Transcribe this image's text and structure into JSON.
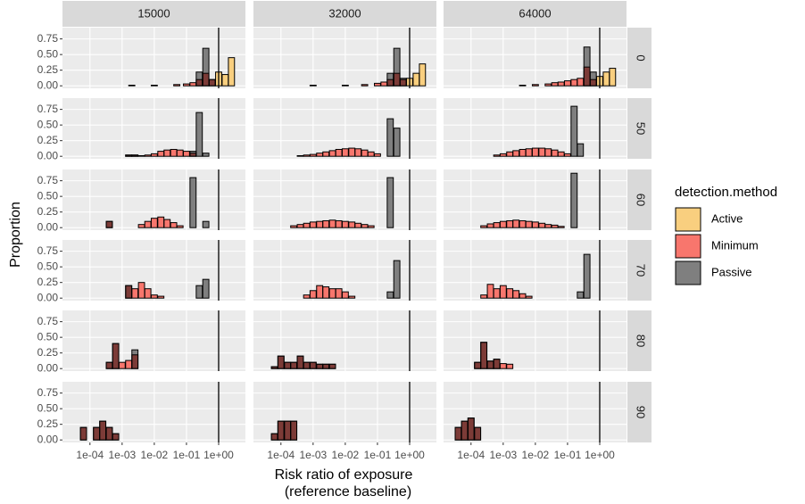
{
  "chart_data": {
    "type": "histogram",
    "xlabel": [
      "Risk ratio of exposure",
      "(reference baseline)"
    ],
    "ylabel": "Proportion",
    "log_x": true,
    "xlim": [
      1.4e-05,
      6.8
    ],
    "xticks": [
      {
        "value": 0.0001,
        "label": "1e-04"
      },
      {
        "value": 0.001,
        "label": "1e-03"
      },
      {
        "value": 0.01,
        "label": "1e-02"
      },
      {
        "value": 0.1,
        "label": "1e-01"
      },
      {
        "value": 1,
        "label": "1e+00"
      }
    ],
    "ylim": [
      -0.04,
      0.93
    ],
    "yticks": [
      {
        "value": 0,
        "label": "0.00"
      },
      {
        "value": 0.25,
        "label": "0.25"
      },
      {
        "value": 0.5,
        "label": "0.50"
      },
      {
        "value": 0.75,
        "label": "0.75"
      }
    ],
    "vline": 1,
    "grid": true,
    "legend": {
      "title": "detection.method",
      "position": "right"
    },
    "series": [
      {
        "name": "Active",
        "color": "#F9CF7F"
      },
      {
        "name": "Minimum",
        "color": "#F8766D"
      },
      {
        "name": "Passive",
        "color": "#7F7F7F"
      }
    ],
    "columns": [
      "15000",
      "32000",
      "64000"
    ],
    "rows": [
      "0",
      "50",
      "60",
      "70",
      "80",
      "90"
    ],
    "panels": [
      [
        [
          {
            "x": [
              1,
              1.6,
              2.5
            ],
            "values": [
              0.22,
              0.18,
              0.45
            ]
          },
          {
            "x": [
              0.002,
              0.01,
              0.05,
              0.1,
              0.16,
              0.25,
              0.4,
              0.63
            ],
            "values": [
              0.01,
              0.01,
              0.02,
              0.03,
              0.05,
              0.1,
              0.2,
              0.1
            ]
          },
          {
            "x": [
              0.25,
              0.4,
              0.63
            ],
            "values": [
              0.22,
              0.6,
              0.1
            ]
          }
        ],
        [
          {
            "x": [
              1,
              1.6,
              2.5
            ],
            "values": [
              0.12,
              0.2,
              0.35
            ]
          },
          {
            "x": [
              0.001,
              0.01,
              0.04,
              0.1,
              0.16,
              0.25,
              0.4,
              0.63
            ],
            "values": [
              0.01,
              0.01,
              0.02,
              0.04,
              0.06,
              0.1,
              0.2,
              0.1
            ]
          },
          {
            "x": [
              0.25,
              0.4,
              0.63
            ],
            "values": [
              0.2,
              0.6,
              0.12
            ]
          }
        ],
        [
          {
            "x": [
              1,
              1.6,
              2.5
            ],
            "values": [
              0.15,
              0.22,
              0.28
            ]
          },
          {
            "x": [
              0.004,
              0.01,
              0.025,
              0.04,
              0.063,
              0.1,
              0.16,
              0.25,
              0.4,
              0.63
            ],
            "values": [
              0.01,
              0.02,
              0.03,
              0.05,
              0.06,
              0.08,
              0.1,
              0.12,
              0.3,
              0.1
            ]
          },
          {
            "x": [
              0.4,
              0.63
            ],
            "values": [
              0.62,
              0.22
            ]
          }
        ]
      ],
      [
        [
          {
            "x": [],
            "values": []
          },
          {
            "x": [
              0.0016,
              0.0025,
              0.004,
              0.0063,
              0.01,
              0.016,
              0.025,
              0.04,
              0.063,
              0.1,
              0.16
            ],
            "values": [
              0.02,
              0.02,
              0.01,
              0.02,
              0.04,
              0.08,
              0.1,
              0.11,
              0.1,
              0.08,
              0.05
            ]
          },
          {
            "x": [
              0.0016,
              0.0025,
              0.16,
              0.25,
              0.4
            ],
            "values": [
              0.02,
              0.02,
              0.08,
              0.7,
              0.05
            ]
          }
        ],
        [
          {
            "x": [],
            "values": []
          },
          {
            "x": [
              0.0004,
              0.00063,
              0.001,
              0.0016,
              0.0025,
              0.004,
              0.0063,
              0.01,
              0.016,
              0.025,
              0.04,
              0.063,
              0.1
            ],
            "values": [
              0.01,
              0.02,
              0.03,
              0.05,
              0.07,
              0.09,
              0.11,
              0.12,
              0.13,
              0.12,
              0.1,
              0.07,
              0.04
            ]
          },
          {
            "x": [
              0.25,
              0.4
            ],
            "values": [
              0.6,
              0.45
            ]
          }
        ],
        [
          {
            "x": [],
            "values": []
          },
          {
            "x": [
              0.00063,
              0.001,
              0.0016,
              0.0025,
              0.004,
              0.0063,
              0.01,
              0.016,
              0.025,
              0.04,
              0.063,
              0.1
            ],
            "values": [
              0.02,
              0.04,
              0.07,
              0.09,
              0.11,
              0.12,
              0.13,
              0.13,
              0.12,
              0.1,
              0.07,
              0.04
            ]
          },
          {
            "x": [
              0.16,
              0.25
            ],
            "values": [
              0.8,
              0.2
            ]
          }
        ]
      ],
      [
        [
          {
            "x": [],
            "values": []
          },
          {
            "x": [
              0.0004,
              0.004,
              0.0063,
              0.01,
              0.016,
              0.025,
              0.04,
              0.063
            ],
            "values": [
              0.1,
              0.05,
              0.1,
              0.15,
              0.17,
              0.13,
              0.08,
              0.03
            ]
          },
          {
            "x": [
              0.0004,
              0.16,
              0.4
            ],
            "values": [
              0.1,
              0.8,
              0.1
            ]
          }
        ],
        [
          {
            "x": [],
            "values": []
          },
          {
            "x": [
              0.00025,
              0.0004,
              0.00063,
              0.001,
              0.0016,
              0.0025,
              0.004,
              0.0063,
              0.01,
              0.016,
              0.025,
              0.04,
              0.063
            ],
            "values": [
              0.03,
              0.05,
              0.07,
              0.09,
              0.1,
              0.11,
              0.12,
              0.11,
              0.1,
              0.09,
              0.07,
              0.05,
              0.03
            ]
          },
          {
            "x": [
              0.25
            ],
            "values": [
              0.8
            ]
          }
        ],
        [
          {
            "x": [],
            "values": []
          },
          {
            "x": [
              0.00025,
              0.0004,
              0.00063,
              0.001,
              0.0016,
              0.0025,
              0.004,
              0.0063,
              0.01,
              0.016,
              0.025,
              0.04,
              0.063
            ],
            "values": [
              0.03,
              0.06,
              0.08,
              0.1,
              0.11,
              0.12,
              0.11,
              0.1,
              0.09,
              0.07,
              0.05,
              0.04,
              0.02
            ]
          },
          {
            "x": [
              0.16
            ],
            "values": [
              0.87
            ]
          }
        ]
      ],
      [
        [
          {
            "x": [],
            "values": []
          },
          {
            "x": [
              0.0016,
              0.0025,
              0.004,
              0.0063,
              0.01,
              0.016
            ],
            "values": [
              0.2,
              0.15,
              0.25,
              0.15,
              0.05,
              0.03
            ]
          },
          {
            "x": [
              0.0016,
              0.25,
              0.4
            ],
            "values": [
              0.2,
              0.2,
              0.3
            ]
          }
        ],
        [
          {
            "x": [],
            "values": []
          },
          {
            "x": [
              0.00063,
              0.001,
              0.0016,
              0.0025,
              0.004,
              0.0063,
              0.01,
              0.016
            ],
            "values": [
              0.05,
              0.12,
              0.2,
              0.18,
              0.15,
              0.15,
              0.1,
              0.03
            ]
          },
          {
            "x": [
              0.25,
              0.4
            ],
            "values": [
              0.1,
              0.6
            ]
          }
        ],
        [
          {
            "x": [],
            "values": []
          },
          {
            "x": [
              0.00025,
              0.0004,
              0.00063,
              0.001,
              0.0016,
              0.0025,
              0.004,
              0.0063
            ],
            "values": [
              0.05,
              0.22,
              0.15,
              0.2,
              0.15,
              0.12,
              0.07,
              0.03
            ]
          },
          {
            "x": [
              0.25,
              0.4
            ],
            "values": [
              0.1,
              0.7
            ]
          }
        ]
      ],
      [
        [
          {
            "x": [],
            "values": []
          },
          {
            "x": [
              0.0004,
              0.00063,
              0.001,
              0.0016,
              0.0025
            ],
            "values": [
              0.1,
              0.4,
              0.1,
              0.13,
              0.22
            ]
          },
          {
            "x": [
              0.0004,
              0.00063,
              0.0025
            ],
            "values": [
              0.1,
              0.4,
              0.3
            ]
          }
        ],
        [
          {
            "x": [],
            "values": []
          },
          {
            "x": [
              6.3e-05,
              0.0001,
              0.00016,
              0.00025,
              0.0004,
              0.00063,
              0.001,
              0.0016,
              0.0025,
              0.004
            ],
            "values": [
              0.03,
              0.2,
              0.1,
              0.1,
              0.2,
              0.1,
              0.1,
              0.07,
              0.07,
              0.07
            ]
          },
          {
            "x": [
              6.3e-05,
              0.0001,
              0.00016,
              0.00025,
              0.0004,
              0.00063,
              0.001,
              0.0016,
              0.0025,
              0.004
            ],
            "values": [
              0.03,
              0.2,
              0.1,
              0.1,
              0.2,
              0.1,
              0.1,
              0.07,
              0.07,
              0.07
            ]
          }
        ],
        [
          {
            "x": [],
            "values": []
          },
          {
            "x": [
              0.00016,
              0.00025,
              0.0004,
              0.00063,
              0.001,
              0.0016
            ],
            "values": [
              0.1,
              0.42,
              0.12,
              0.15,
              0.08,
              0.07
            ]
          },
          {
            "x": [
              0.00016,
              0.00025,
              0.0004,
              0.00063
            ],
            "values": [
              0.1,
              0.42,
              0.12,
              0.15
            ]
          }
        ]
      ],
      [
        [
          {
            "x": [],
            "values": []
          },
          {
            "x": [
              6.3e-05,
              0.00016,
              0.00025,
              0.0004,
              0.00063
            ],
            "values": [
              0.2,
              0.2,
              0.3,
              0.2,
              0.1
            ]
          },
          {
            "x": [
              6.3e-05,
              0.00016,
              0.00025,
              0.0004,
              0.00063
            ],
            "values": [
              0.2,
              0.2,
              0.3,
              0.2,
              0.1
            ]
          }
        ],
        [
          {
            "x": [],
            "values": []
          },
          {
            "x": [
              6.3e-05,
              0.0001,
              0.00016,
              0.00025
            ],
            "values": [
              0.1,
              0.3,
              0.3,
              0.3
            ]
          },
          {
            "x": [
              6.3e-05,
              0.0001,
              0.00016,
              0.00025
            ],
            "values": [
              0.1,
              0.3,
              0.3,
              0.3
            ]
          }
        ],
        [
          {
            "x": [],
            "values": []
          },
          {
            "x": [
              4e-05,
              6.3e-05,
              0.0001,
              0.00016
            ],
            "values": [
              0.2,
              0.3,
              0.35,
              0.2
            ]
          },
          {
            "x": [
              4e-05,
              6.3e-05,
              0.0001,
              0.00016
            ],
            "values": [
              0.2,
              0.3,
              0.35,
              0.2
            ]
          }
        ]
      ]
    ]
  }
}
